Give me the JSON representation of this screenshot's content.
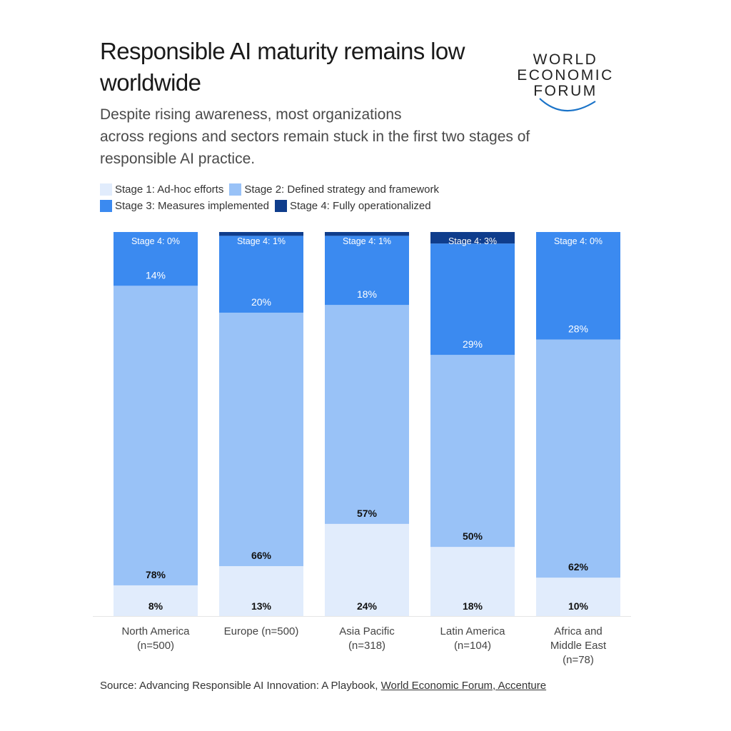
{
  "title": "Responsible AI maturity remains low worldwide",
  "subtitle_lines": [
    "Despite rising awareness, most organizations",
    "across regions and sectors remain stuck in the first two stages of",
    "responsible AI practice."
  ],
  "logo": {
    "lines": [
      "WORLD",
      "ECONOMIC",
      "FORUM"
    ]
  },
  "source": {
    "prefix": "Source: Advancing Responsible AI Innovation: A Playbook, ",
    "link": "World Economic Forum, Accenture"
  },
  "colors": {
    "stage1": "#e1ecfc",
    "stage2": "#99c2f7",
    "stage3": "#3b8af0",
    "stage4": "#0f3d8c"
  },
  "chart_data": {
    "type": "bar",
    "stacked": true,
    "orientation": "vertical",
    "legend_position": "top-left",
    "grid": false,
    "ylim": [
      0,
      100
    ],
    "categories": [
      "North America (n=500)",
      "Europe (n=500)",
      "Asia Pacific (n=318)",
      "Latin America (n=104)",
      "Africa and Middle East (n=78)"
    ],
    "category_label_lines": [
      [
        "North America",
        "(n=500)"
      ],
      [
        "Europe (n=500)"
      ],
      [
        "Asia Pacific",
        "(n=318)"
      ],
      [
        "Latin America",
        "(n=104)"
      ],
      [
        "Africa and",
        "Middle East",
        "(n=78)"
      ]
    ],
    "series": [
      {
        "name": "Stage 1: Ad-hoc efforts",
        "values": [
          8,
          13,
          24,
          18,
          10
        ],
        "labels": [
          "8%",
          "13%",
          "24%",
          "18%",
          "10%"
        ]
      },
      {
        "name": "Stage 2: Defined strategy and framework",
        "values": [
          78,
          66,
          57,
          50,
          62
        ],
        "labels": [
          "78%",
          "66%",
          "57%",
          "50%",
          "62%"
        ]
      },
      {
        "name": "Stage 3: Measures implemented",
        "values": [
          14,
          20,
          18,
          29,
          28
        ],
        "labels": [
          "14%",
          "20%",
          "18%",
          "29%",
          "28%"
        ]
      },
      {
        "name": "Stage 4: Fully operationalized",
        "values": [
          0,
          1,
          1,
          3,
          0
        ],
        "labels": [
          "Stage 4: 0%",
          "Stage 4: 1%",
          "Stage 4: 1%",
          "Stage 4: 3%",
          "Stage 4: 0%"
        ]
      }
    ]
  }
}
